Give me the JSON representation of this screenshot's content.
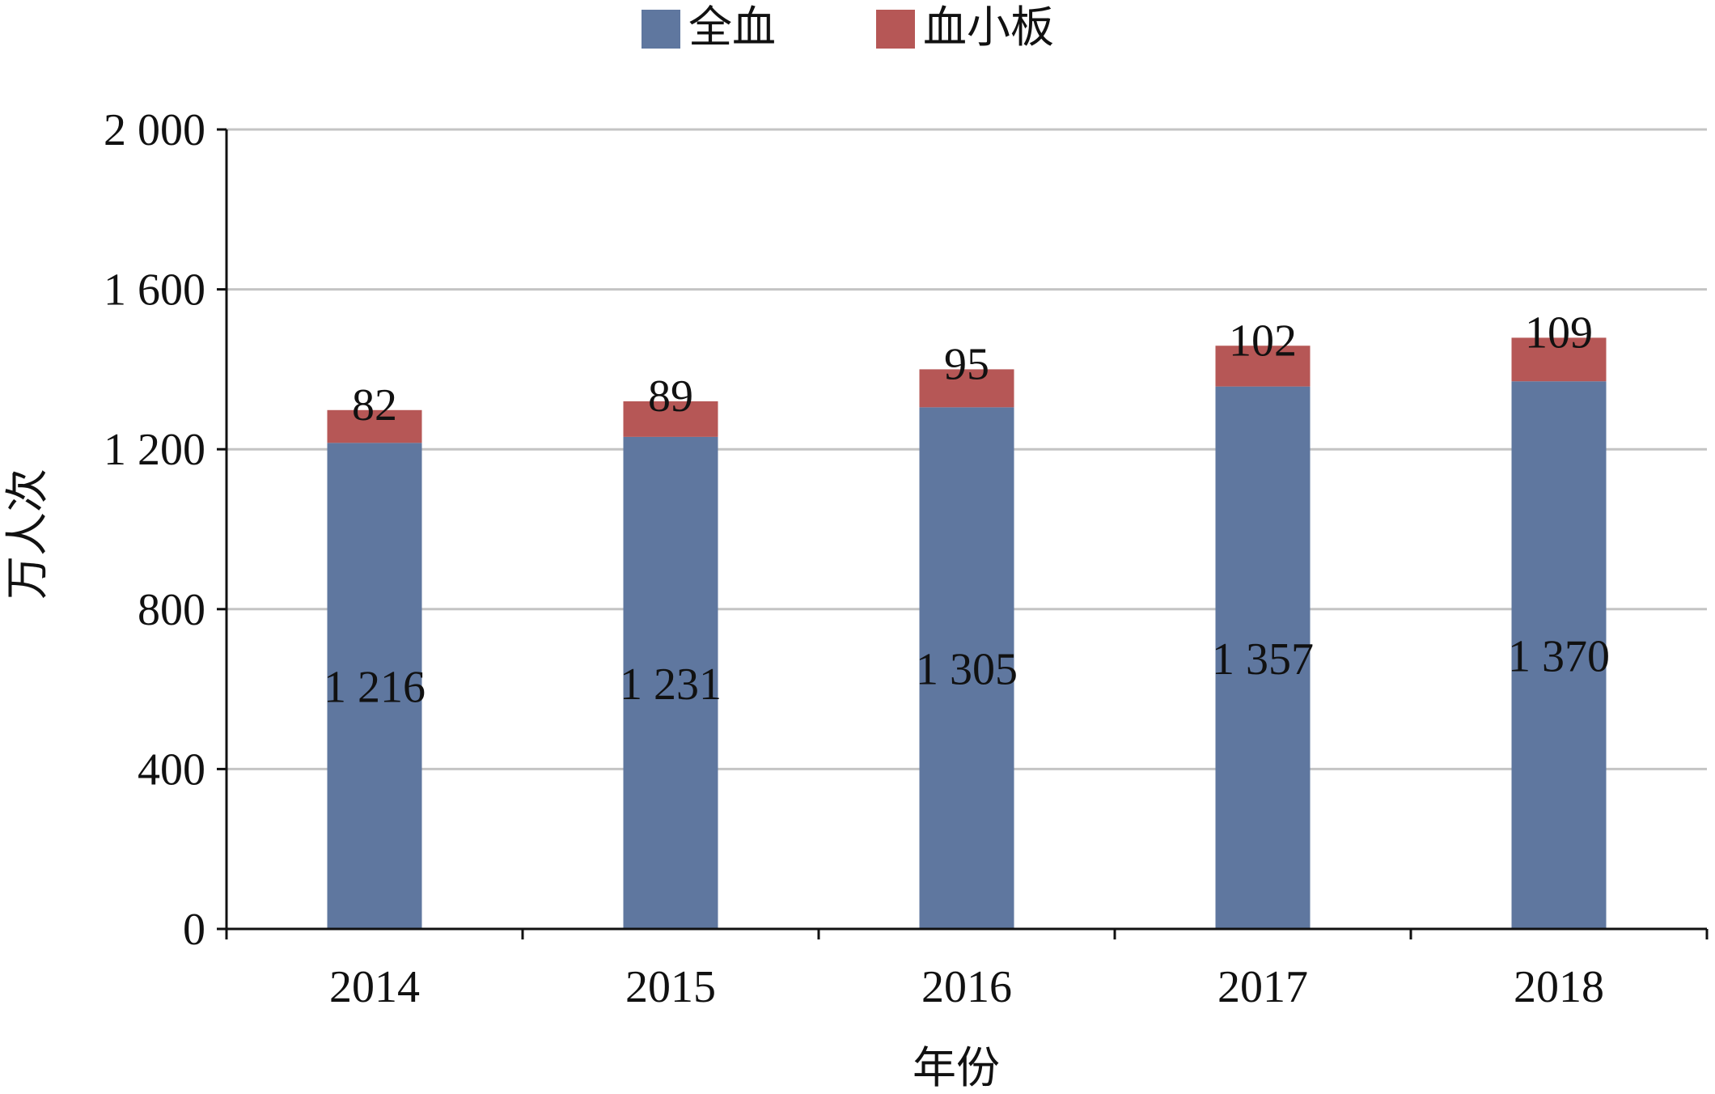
{
  "chart_data": {
    "type": "bar",
    "stacked": true,
    "categories": [
      "2014",
      "2015",
      "2016",
      "2017",
      "2018"
    ],
    "series": [
      {
        "name": "全血",
        "values": [
          1216,
          1231,
          1305,
          1357,
          1370
        ],
        "color": "#5f779f"
      },
      {
        "name": "血小板",
        "values": [
          82,
          89,
          95,
          102,
          109
        ],
        "color": "#b65756"
      }
    ],
    "data_labels": {
      "全血": [
        "1 216",
        "1 231",
        "1 305",
        "1 357",
        "1 370"
      ],
      "血小板": [
        "82",
        "89",
        "95",
        "102",
        "109"
      ]
    },
    "xlabel": "年份",
    "ylabel": "万人次",
    "ylim": [
      0,
      2000
    ],
    "yticks": [
      0,
      400,
      800,
      1200,
      1600,
      2000
    ],
    "ytick_labels": [
      "0",
      "400",
      "800",
      "1 200",
      "1 600",
      "2 000"
    ],
    "grid": true,
    "legend_position": "top-center"
  }
}
